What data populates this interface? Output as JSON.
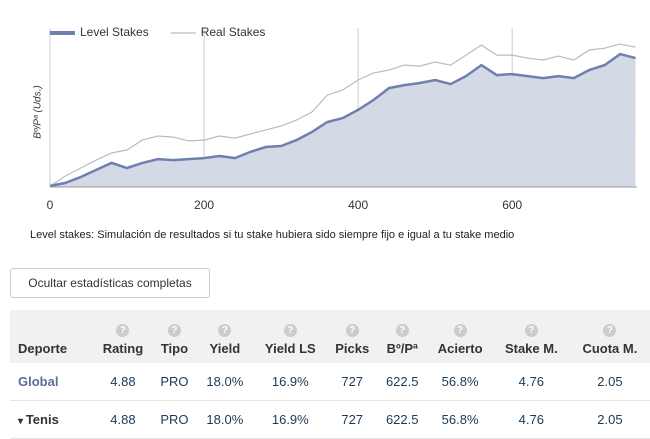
{
  "chart_data": {
    "type": "line",
    "y_label": "Bº/Pª (Uds.)",
    "x": [
      0,
      20,
      40,
      60,
      80,
      100,
      120,
      140,
      160,
      180,
      200,
      220,
      240,
      260,
      280,
      300,
      320,
      340,
      360,
      380,
      400,
      420,
      440,
      460,
      480,
      500,
      520,
      540,
      560,
      580,
      600,
      620,
      640,
      660,
      680,
      700,
      720,
      740,
      760
    ],
    "series": [
      {
        "name": "Level Stakes",
        "color": "#6f7fb0",
        "fill": "#d4d9e6",
        "values": [
          -5,
          10,
          39,
          74,
          108,
          83,
          108,
          127,
          122,
          127,
          132,
          142,
          132,
          162,
          186,
          191,
          220,
          260,
          309,
          328,
          368,
          417,
          475,
          490,
          500,
          515,
          495,
          534,
          588,
          539,
          544,
          534,
          524,
          534,
          524,
          564,
          588,
          642,
          622.5
        ]
      },
      {
        "name": "Real Stakes",
        "color": "#bbbbbb",
        "values": [
          -5,
          44,
          83,
          122,
          157,
          172,
          220,
          240,
          235,
          216,
          220,
          240,
          230,
          250,
          270,
          289,
          318,
          358,
          441,
          466,
          515,
          549,
          564,
          588,
          583,
          603,
          588,
          637,
          686,
          637,
          637,
          622,
          613,
          632,
          613,
          662,
          671,
          691,
          676
        ]
      }
    ],
    "xlim": [
      0,
      762
    ],
    "xticks": [
      0,
      200,
      400,
      600
    ],
    "ylim": [
      -10,
      770
    ],
    "grid": true
  },
  "note": "Level stakes: Simulación de resultados si tu stake hubiera sido siempre fijo e igual a tu stake medio",
  "button": "Ocultar estadísticas completas",
  "table": {
    "headers": [
      "Deporte",
      "Rating",
      "Tipo",
      "Yield",
      "Yield LS",
      "Picks",
      "Bº/Pª",
      "Acierto",
      "Stake M.",
      "Cuota M."
    ],
    "rows": [
      [
        "Global",
        "4.88",
        "PRO",
        "18.0%",
        "16.9%",
        "727",
        "622.5",
        "56.8%",
        "4.76",
        "2.05"
      ],
      [
        "Tenis",
        "4.88",
        "PRO",
        "18.0%",
        "16.9%",
        "727",
        "622.5",
        "56.8%",
        "4.76",
        "2.05"
      ]
    ]
  }
}
